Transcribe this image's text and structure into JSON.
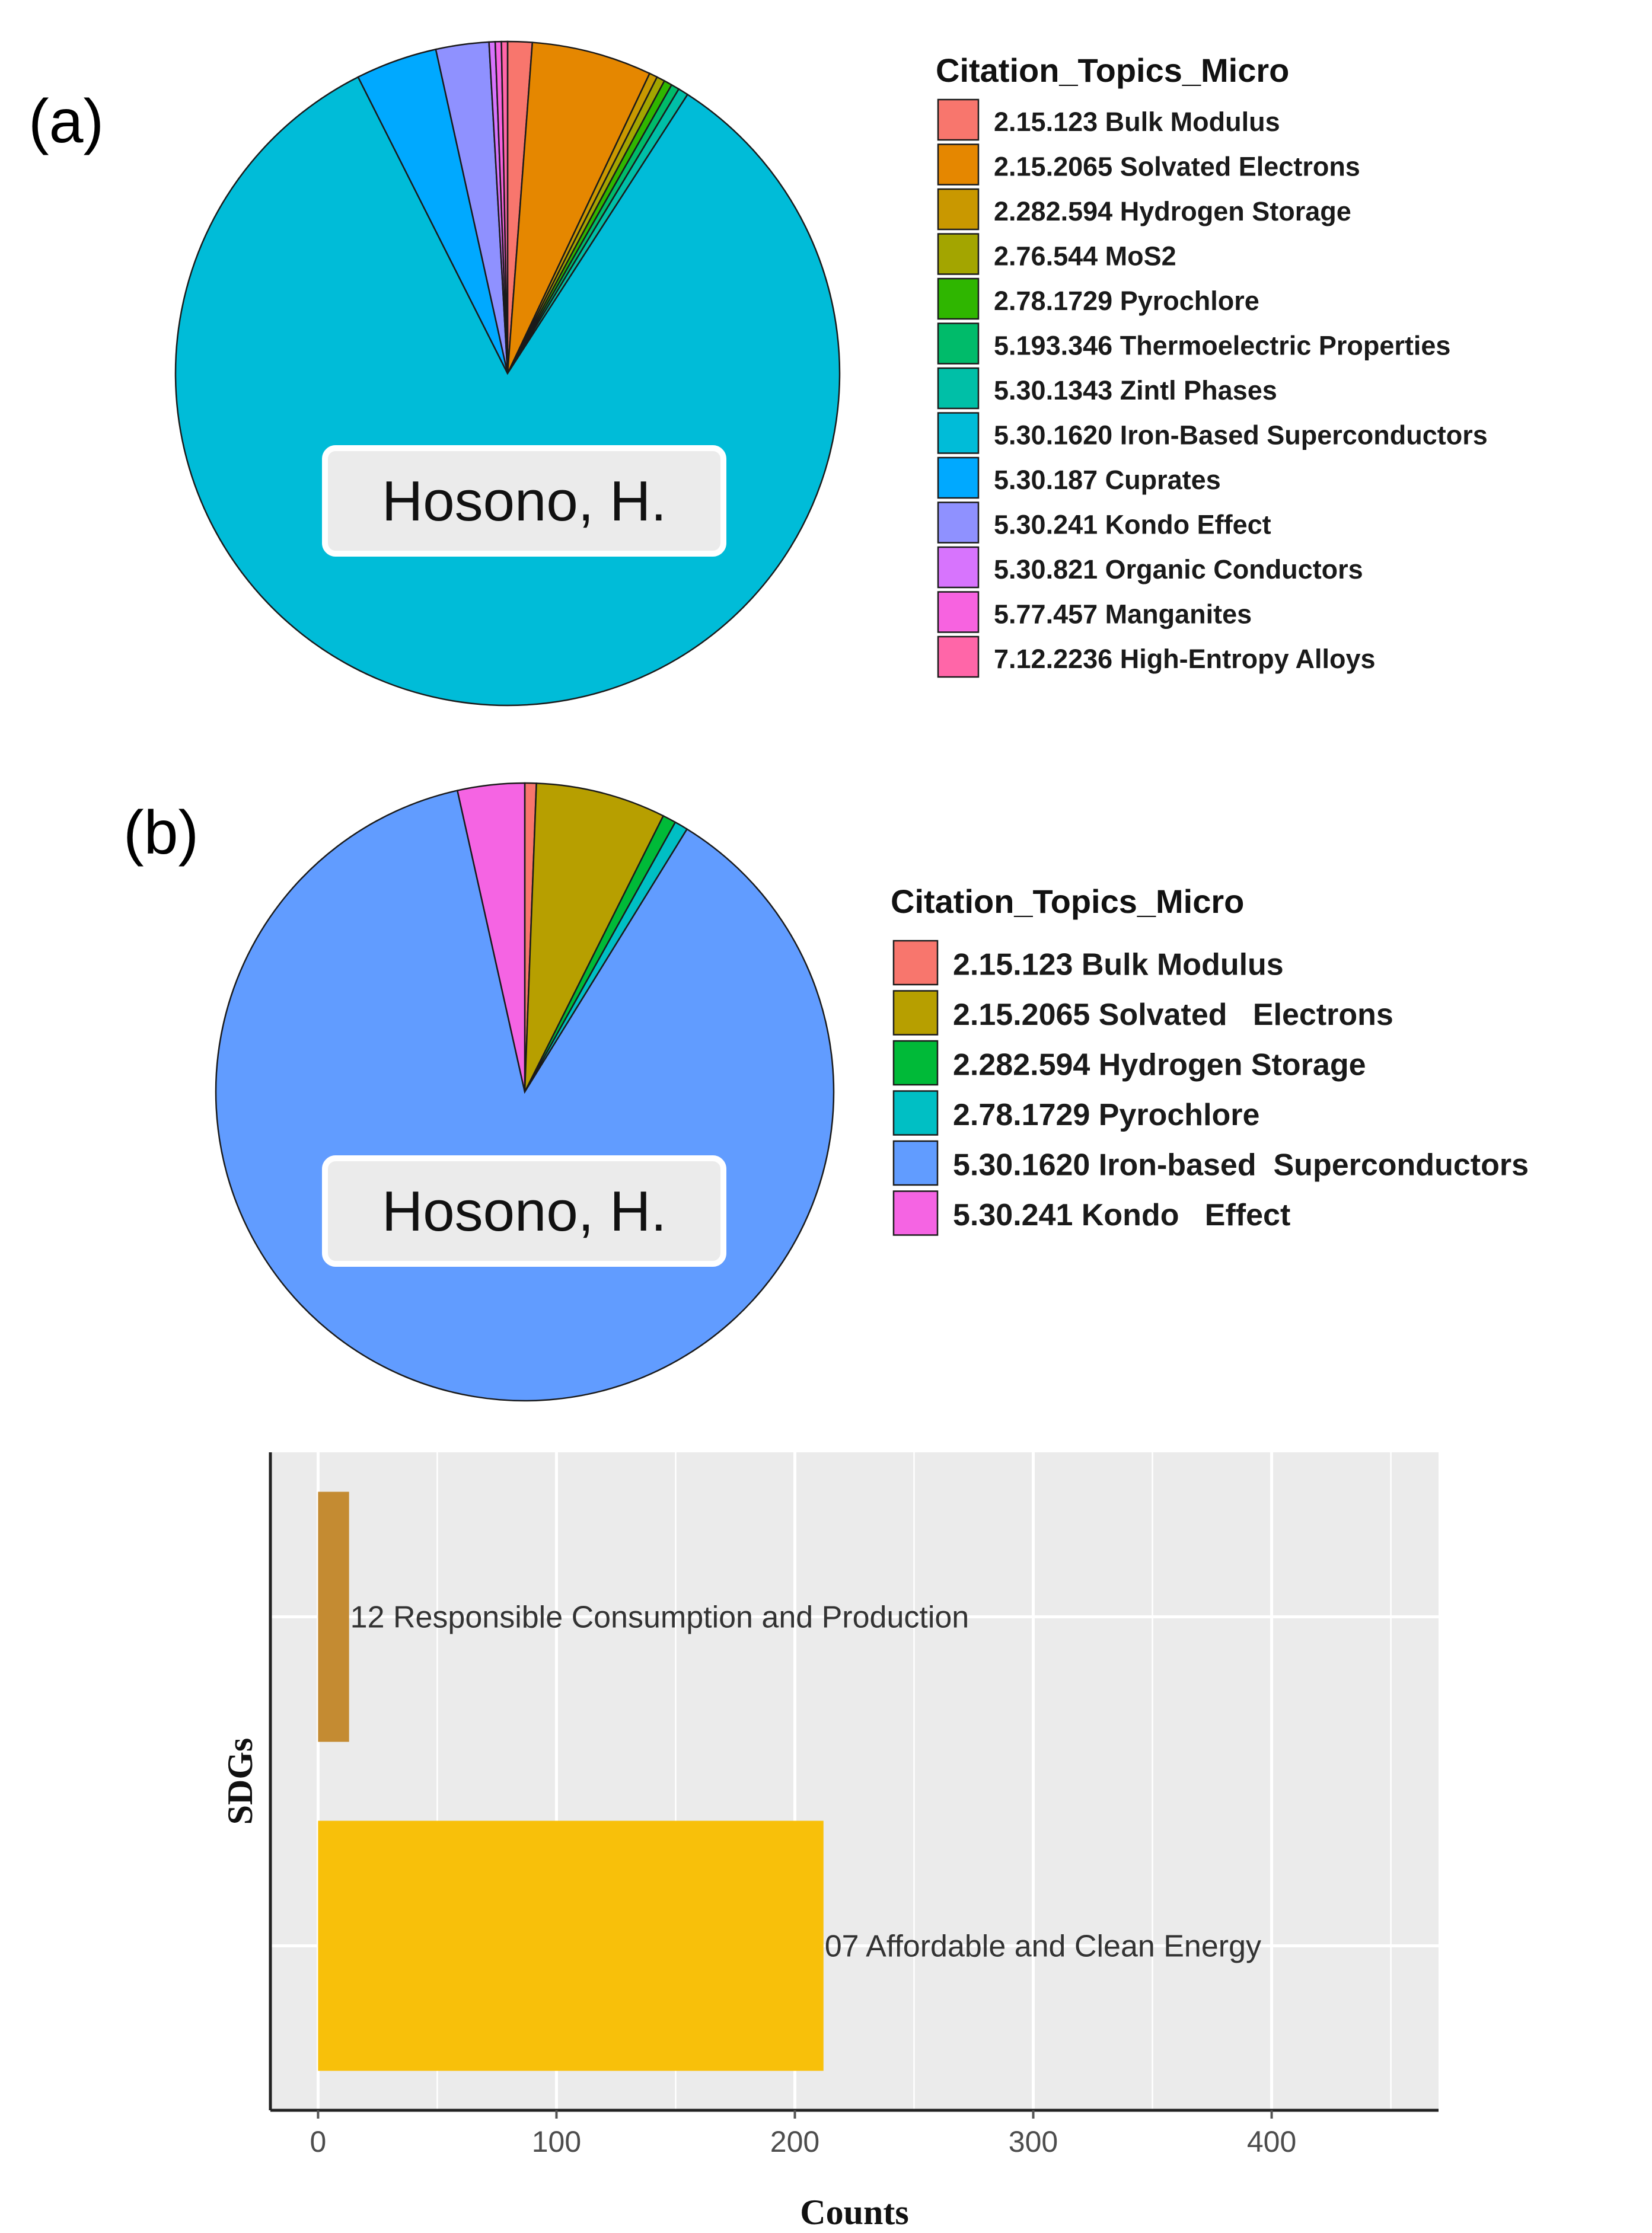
{
  "panel_a": {
    "label": "(a)",
    "name_label": "Hosono, H.",
    "legend_title": "Citation_Topics_Micro"
  },
  "panel_b": {
    "label": "(b)",
    "name_label": "Hosono, H.",
    "legend_title": "Citation_Topics_Micro"
  },
  "panel_c": {
    "xlabel": "Counts",
    "ylabel": "SDGs"
  },
  "chart_data": [
    {
      "type": "pie",
      "legend_placement": "right",
      "slices": [
        {
          "label": "2.15.123 Bulk Modulus",
          "value": 1.2,
          "color": "#F8766D"
        },
        {
          "label": "2.15.2065 Solvated Electrons",
          "value": 5.9,
          "color": "#E58700"
        },
        {
          "label": "2.282.594 Hydrogen Storage",
          "value": 0.4,
          "color": "#C99800"
        },
        {
          "label": "2.76.544 MoS2",
          "value": 0.4,
          "color": "#A3A500"
        },
        {
          "label": "2.78.1729 Pyrochlore",
          "value": 0.4,
          "color": "#2FB600"
        },
        {
          "label": "5.193.346 Thermoelectric Properties",
          "value": 0.4,
          "color": "#00BB6A"
        },
        {
          "label": "5.30.1343 Zintl Phases",
          "value": 0.5,
          "color": "#00BFA7"
        },
        {
          "label": "5.30.1620 Iron-Based Superconductors",
          "value": 84.2,
          "color": "#00BCD8"
        },
        {
          "label": "5.30.187 Cuprates",
          "value": 4.0,
          "color": "#00A9FF"
        },
        {
          "label": "5.30.241 Kondo Effect",
          "value": 2.6,
          "color": "#8F91FF"
        },
        {
          "label": "5.30.821 Organic Conductors",
          "value": 0.3,
          "color": "#D774FD"
        },
        {
          "label": "5.77.457 Manganites",
          "value": 0.3,
          "color": "#F763E0"
        },
        {
          "label": "7.12.2236 High-Entropy Alloys",
          "value": 0.3,
          "color": "#FF66A8"
        }
      ]
    },
    {
      "type": "pie",
      "legend_placement": "right",
      "slices": [
        {
          "label": "2.15.123 Bulk Modulus",
          "value": 0.6,
          "color": "#F8766D"
        },
        {
          "label": "2.15.2065 Solvated   Electrons",
          "value": 6.8,
          "color": "#B79F00"
        },
        {
          "label": "2.282.594 Hydrogen Storage",
          "value": 0.7,
          "color": "#00BA38"
        },
        {
          "label": "2.78.1729 Pyrochlore",
          "value": 0.7,
          "color": "#00BFC4"
        },
        {
          "label": "5.30.1620 Iron-based  Superconductors",
          "value": 87.7,
          "color": "#619CFF"
        },
        {
          "label": "5.30.241 Kondo   Effect",
          "value": 3.5,
          "color": "#F564E3"
        }
      ]
    },
    {
      "type": "bar",
      "orientation": "horizontal",
      "categories": [
        "07 Affordable and Clean Energy",
        "12 Responsible Consumption and Production"
      ],
      "values": [
        212,
        13
      ],
      "colors": [
        "#F8C00A",
        "#C48B32"
      ],
      "xlabel": "Counts",
      "ylabel": "SDGs",
      "xlim": [
        -20,
        470
      ],
      "xticks": [
        0,
        100,
        200,
        300,
        400
      ],
      "grid": true
    }
  ]
}
